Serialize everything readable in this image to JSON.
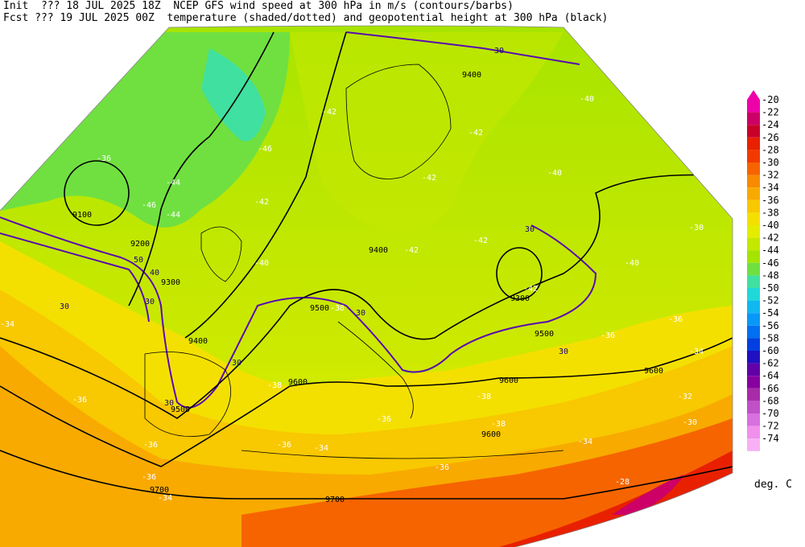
{
  "header": {
    "line1": "Init  ??? 18 JUL 2025 18Z  NCEP GFS wind speed at 300 hPa in m/s (contours/barbs)",
    "line2": "Fcst ??? 19 JUL 2025 00Z  temperature (shaded/dotted) and geopotential height at 300 hPa (black)"
  },
  "legend": {
    "unit": "deg. C",
    "levels": [
      "-20",
      "-22",
      "-24",
      "-26",
      "-28",
      "-30",
      "-32",
      "-34",
      "-36",
      "-38",
      "-40",
      "-42",
      "-44",
      "-46",
      "-48",
      "-50",
      "-52",
      "-54",
      "-56",
      "-58",
      "-60",
      "-62",
      "-64",
      "-66",
      "-68",
      "-70",
      "-72",
      "-74"
    ],
    "colors": [
      "#ee00aa",
      "#cc0066",
      "#c8002a",
      "#e82000",
      "#f23a00",
      "#f66400",
      "#f88a00",
      "#f8aa00",
      "#f8c800",
      "#f4e000",
      "#e4ec00",
      "#c4e800",
      "#a4e400",
      "#70e040",
      "#40e0a0",
      "#20d8d8",
      "#10b8f0",
      "#0898f8",
      "#0070f0",
      "#0040e0",
      "#2010c0",
      "#6000a8",
      "#8800a0",
      "#a82ca8",
      "#c050c8",
      "#d870e0",
      "#f090ec",
      "#f8b0f4"
    ]
  },
  "map_labels": {
    "height_labels": [
      "9400",
      "9100",
      "9200",
      "9300",
      "9400",
      "9500",
      "9600",
      "9500",
      "9400",
      "9300",
      "9500",
      "9600",
      "9600",
      "9700",
      "9700",
      "9600",
      "9500"
    ],
    "wind_labels": [
      "30",
      "30",
      "50",
      "40",
      "30",
      "30",
      "30",
      "30",
      "30",
      "30"
    ],
    "temp_labels": [
      "-42",
      "-42",
      "-40",
      "-42",
      "-44",
      "-46",
      "-46",
      "-44",
      "-42",
      "-40",
      "-42",
      "-42",
      "-40",
      "-42",
      "-40",
      "-38",
      "-36",
      "-38",
      "-36",
      "-34",
      "-36",
      "-36",
      "-34",
      "-36",
      "-34",
      "-36",
      "-34",
      "-38",
      "-36",
      "-34",
      "-36",
      "-32",
      "-30",
      "-28",
      "-30",
      "-38",
      "-36"
    ]
  }
}
